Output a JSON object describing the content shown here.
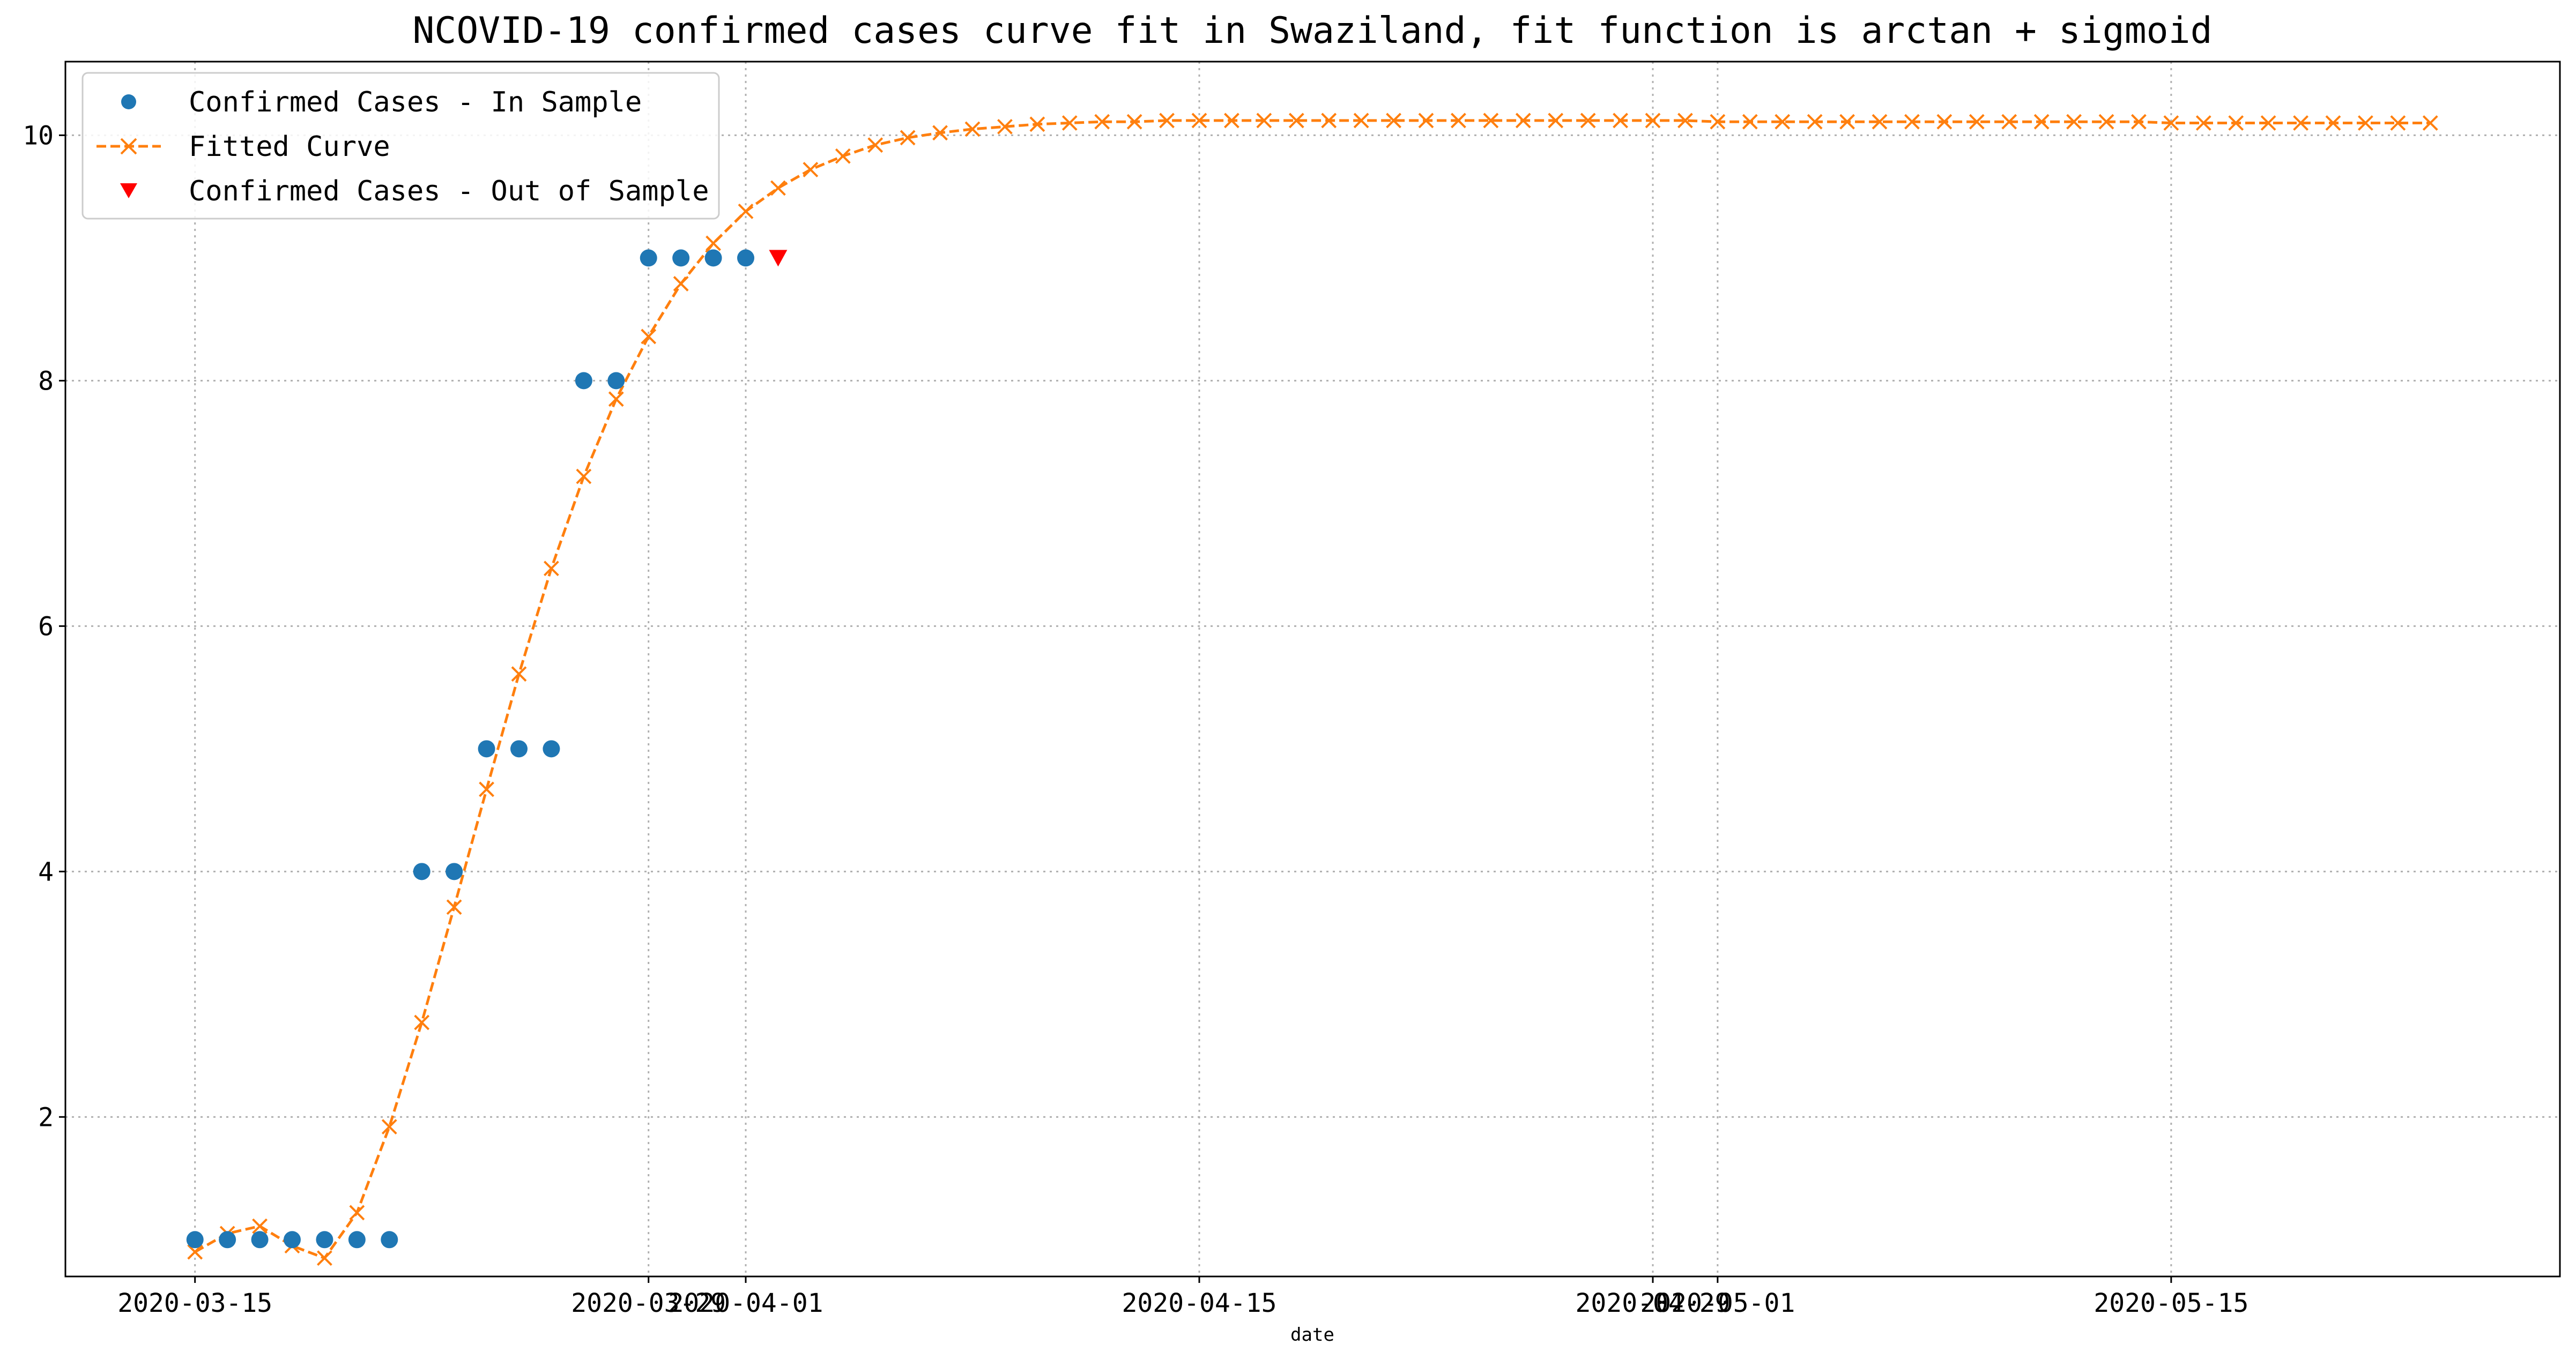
{
  "chart_data": {
    "type": "line",
    "title": "NCOVID-19 confirmed cases curve fit in Swaziland, fit function is arctan + sigmoid",
    "xlabel": "date",
    "ylabel": "",
    "x_start": "2020-03-15",
    "x_end": "2020-05-23",
    "xlim": [
      "2020-03-11",
      "2020-05-27"
    ],
    "ylim": [
      0.7,
      10.6
    ],
    "x_ticks": [
      {
        "date": "2020-03-15",
        "label": "2020-03-15"
      },
      {
        "date": "2020-03-29",
        "label": "2020-03-29"
      },
      {
        "date": "2020-04-01",
        "label": "2020-04-01"
      },
      {
        "date": "2020-04-15",
        "label": "2020-04-15"
      },
      {
        "date": "2020-04-29",
        "label": "2020-04-29"
      },
      {
        "date": "2020-05-01",
        "label": "2020-05-01"
      },
      {
        "date": "2020-05-15",
        "label": "2020-05-15"
      }
    ],
    "y_ticks": [
      2,
      4,
      6,
      8,
      10
    ],
    "grid": true,
    "legend_position": "top-left",
    "series": [
      {
        "name": "Confirmed Cases - In Sample",
        "style": "scatter",
        "marker": "circle",
        "color": "#1f77b4",
        "x": [
          "2020-03-15",
          "2020-03-16",
          "2020-03-17",
          "2020-03-18",
          "2020-03-19",
          "2020-03-20",
          "2020-03-21",
          "2020-03-22",
          "2020-03-23",
          "2020-03-24",
          "2020-03-25",
          "2020-03-26",
          "2020-03-27",
          "2020-03-28",
          "2020-03-29",
          "2020-03-30",
          "2020-03-31",
          "2020-04-01"
        ],
        "y": [
          1,
          1,
          1,
          1,
          1,
          1,
          1,
          4,
          4,
          5,
          5,
          5,
          8,
          8,
          9,
          9,
          9,
          9
        ]
      },
      {
        "name": "Fitted Curve",
        "style": "dashed-line-x",
        "marker": "x",
        "color": "#ff7f0e",
        "x_start": "2020-03-15",
        "y": [
          0.9,
          1.05,
          1.11,
          0.95,
          0.85,
          1.22,
          1.92,
          2.77,
          3.71,
          4.67,
          5.61,
          6.47,
          7.22,
          7.85,
          8.36,
          8.79,
          9.12,
          9.38,
          9.57,
          9.72,
          9.83,
          9.92,
          9.98,
          10.02,
          10.05,
          10.07,
          10.09,
          10.1,
          10.11,
          10.11,
          10.12,
          10.12,
          10.12,
          10.12,
          10.12,
          10.12,
          10.12,
          10.12,
          10.12,
          10.12,
          10.12,
          10.12,
          10.12,
          10.12,
          10.12,
          10.12,
          10.12,
          10.11,
          10.11,
          10.11,
          10.11,
          10.11,
          10.11,
          10.11,
          10.11,
          10.11,
          10.11,
          10.11,
          10.11,
          10.11,
          10.11,
          10.1,
          10.1,
          10.1,
          10.1,
          10.1,
          10.1,
          10.1,
          10.1,
          10.1
        ]
      },
      {
        "name": "Confirmed Cases - Out of Sample",
        "style": "scatter",
        "marker": "triangle-down",
        "color": "#ff0000",
        "x": [
          "2020-04-02"
        ],
        "y": [
          9
        ]
      }
    ]
  }
}
